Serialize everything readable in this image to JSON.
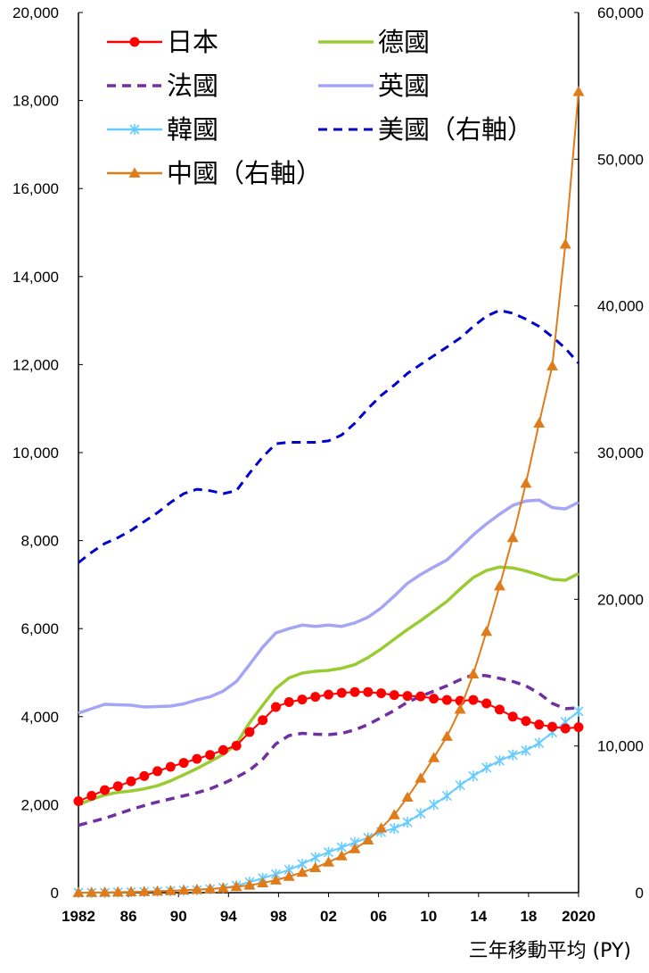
{
  "chart_data": {
    "type": "line",
    "title": "",
    "xlabel": "三年移動平均 (PY)",
    "x_tick_labels": [
      "1982",
      "86",
      "90",
      "94",
      "98",
      "02",
      "06",
      "10",
      "14",
      "18",
      "2020"
    ],
    "xlim": [
      1982,
      2020
    ],
    "left_axis": {
      "ylim": [
        0,
        20000
      ],
      "tick_labels": [
        "0",
        "2,000",
        "4,000",
        "6,000",
        "8,000",
        "10,000",
        "12,000",
        "14,000",
        "16,000",
        "18,000",
        "20,000"
      ]
    },
    "right_axis": {
      "ylim": [
        0,
        60000
      ],
      "tick_labels": [
        "0",
        "10,000",
        "20,000",
        "30,000",
        "40,000",
        "50,000",
        "60,000"
      ]
    },
    "x": [
      1982,
      1983,
      1984,
      1985,
      1986,
      1987,
      1988,
      1989,
      1990,
      1991,
      1992,
      1993,
      1994,
      1995,
      1996,
      1997,
      1998,
      1999,
      2000,
      2001,
      2002,
      2003,
      2004,
      2005,
      2006,
      2007,
      2008,
      2009,
      2010,
      2011,
      2012,
      2013,
      2014,
      2015,
      2016,
      2017,
      2018,
      2019,
      2020
    ],
    "series": [
      {
        "key": "japan",
        "name": "日本",
        "axis": "left",
        "color": "#ff0000",
        "style": "solid",
        "marker": "circle",
        "values": [
          2080,
          2200,
          2330,
          2420,
          2530,
          2650,
          2760,
          2860,
          2950,
          3040,
          3130,
          3240,
          3340,
          3650,
          3920,
          4220,
          4330,
          4390,
          4450,
          4500,
          4540,
          4560,
          4560,
          4530,
          4490,
          4470,
          4460,
          4410,
          4380,
          4360,
          4380,
          4300,
          4160,
          4000,
          3900,
          3820,
          3770,
          3730,
          3760
        ]
      },
      {
        "key": "germany",
        "name": "德國",
        "axis": "left",
        "color": "#99cc33",
        "style": "solid",
        "marker": "none",
        "values": [
          2000,
          2120,
          2220,
          2280,
          2310,
          2360,
          2430,
          2540,
          2680,
          2820,
          2980,
          3140,
          3380,
          3860,
          4260,
          4640,
          4880,
          4990,
          5030,
          5050,
          5100,
          5180,
          5340,
          5540,
          5760,
          5980,
          6180,
          6400,
          6620,
          6900,
          7160,
          7320,
          7400,
          7380,
          7310,
          7220,
          7120,
          7100,
          7250
        ]
      },
      {
        "key": "france",
        "name": "法國",
        "axis": "left",
        "color": "#7030a0",
        "style": "dashed",
        "marker": "none",
        "values": [
          1530,
          1610,
          1690,
          1790,
          1890,
          1980,
          2060,
          2130,
          2200,
          2270,
          2360,
          2480,
          2620,
          2780,
          3030,
          3380,
          3570,
          3620,
          3600,
          3590,
          3620,
          3700,
          3820,
          3980,
          4140,
          4330,
          4460,
          4580,
          4700,
          4840,
          4950,
          4930,
          4870,
          4800,
          4700,
          4530,
          4300,
          4180,
          4200
        ]
      },
      {
        "key": "uk",
        "name": "英國",
        "axis": "left",
        "color": "#a5a5f5",
        "style": "solid",
        "marker": "none",
        "values": [
          4080,
          4180,
          4280,
          4270,
          4260,
          4220,
          4230,
          4240,
          4290,
          4380,
          4450,
          4580,
          4800,
          5180,
          5580,
          5900,
          6000,
          6080,
          6050,
          6080,
          6050,
          6130,
          6260,
          6470,
          6740,
          7030,
          7230,
          7400,
          7560,
          7840,
          8130,
          8380,
          8600,
          8800,
          8900,
          8920,
          8750,
          8720,
          8870
        ]
      },
      {
        "key": "korea",
        "name": "韓國",
        "axis": "left",
        "color": "#66ccff",
        "style": "solid",
        "marker": "star",
        "values": [
          0,
          0,
          0,
          10,
          15,
          20,
          30,
          40,
          50,
          60,
          80,
          110,
          160,
          240,
          330,
          420,
          520,
          650,
          800,
          920,
          1030,
          1140,
          1250,
          1380,
          1460,
          1600,
          1800,
          2000,
          2200,
          2440,
          2650,
          2840,
          3000,
          3130,
          3230,
          3400,
          3640,
          3880,
          4120
        ]
      },
      {
        "key": "usa",
        "name": "美國（右軸）",
        "axis": "right",
        "color": "#0000cc",
        "style": "dashed",
        "marker": "none",
        "values": [
          22500,
          23200,
          23800,
          24200,
          24700,
          25300,
          25900,
          26600,
          27200,
          27500,
          27400,
          27200,
          27400,
          28600,
          29700,
          30600,
          30700,
          30700,
          30700,
          30800,
          31200,
          32000,
          33000,
          33900,
          34600,
          35400,
          36000,
          36600,
          37200,
          37800,
          38600,
          39300,
          39700,
          39500,
          39100,
          38600,
          37900,
          37100,
          36100
        ]
      },
      {
        "key": "china",
        "name": "中國（右軸）",
        "axis": "right",
        "color": "#e07b1a",
        "style": "solid",
        "marker": "triangle",
        "values": [
          0,
          10,
          20,
          30,
          50,
          70,
          100,
          130,
          170,
          210,
          250,
          310,
          400,
          500,
          660,
          850,
          1100,
          1380,
          1700,
          2080,
          2500,
          2990,
          3580,
          4400,
          5300,
          6500,
          7800,
          9200,
          10650,
          12500,
          14900,
          17800,
          20900,
          24200,
          27900,
          32000,
          35900,
          44200,
          54600
        ]
      }
    ]
  }
}
